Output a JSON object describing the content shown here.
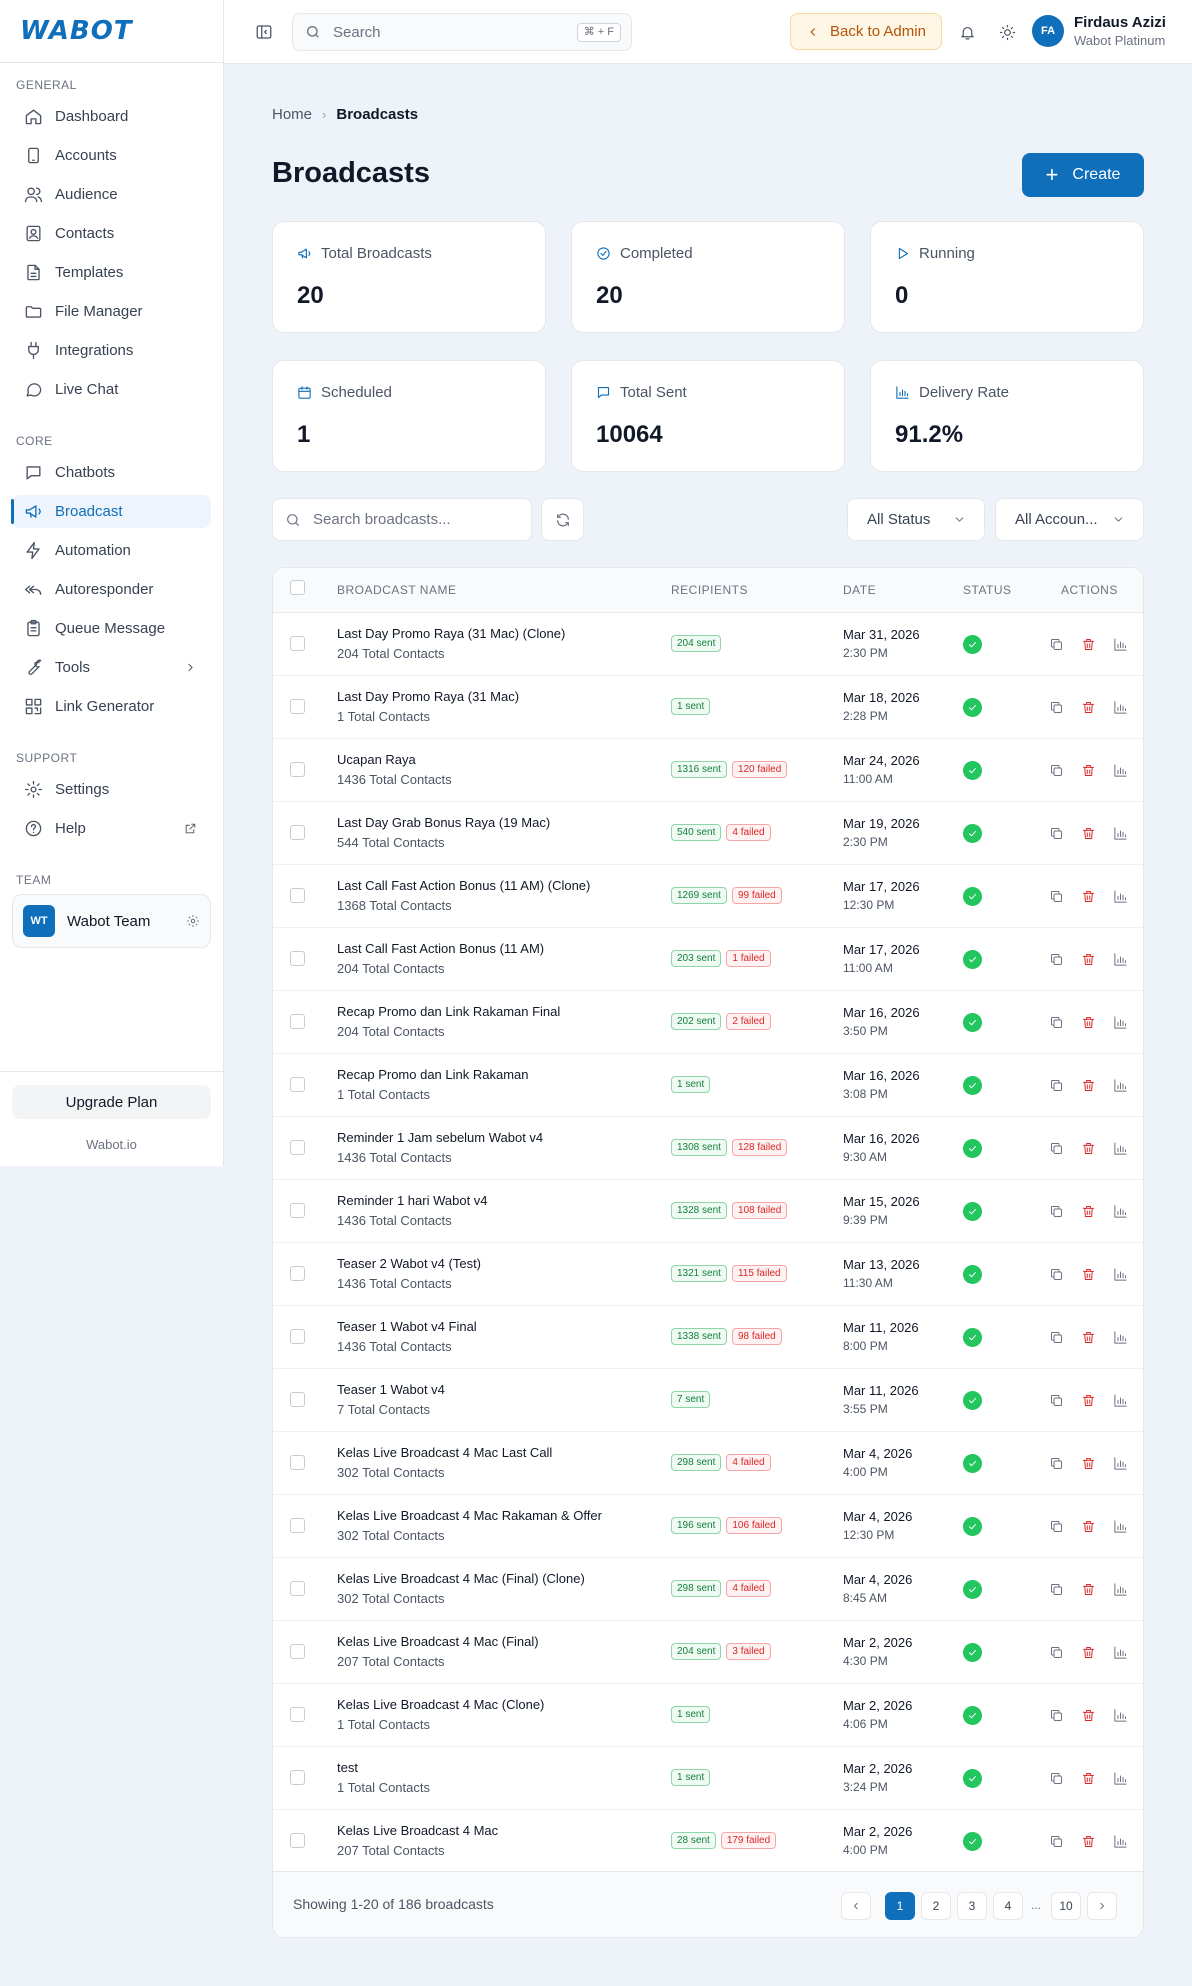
{
  "brand": {
    "logo_text": "WABOT"
  },
  "sidebar": {
    "sections": [
      "GENERAL",
      "CORE",
      "SUPPORT",
      "TEAM"
    ],
    "general": [
      {
        "label": "Dashboard",
        "icon": "home-icon"
      },
      {
        "label": "Accounts",
        "icon": "phone-icon"
      },
      {
        "label": "Audience",
        "icon": "users-icon"
      },
      {
        "label": "Contacts",
        "icon": "contact-card-icon"
      },
      {
        "label": "Templates",
        "icon": "file-text-icon"
      },
      {
        "label": "File Manager",
        "icon": "folder-icon"
      },
      {
        "label": "Integrations",
        "icon": "plug-icon"
      },
      {
        "label": "Live Chat",
        "icon": "message-circle-icon"
      }
    ],
    "core": [
      {
        "label": "Chatbots",
        "icon": "chat-square-icon"
      },
      {
        "label": "Broadcast",
        "icon": "megaphone-icon",
        "active": true
      },
      {
        "label": "Automation",
        "icon": "zap-icon"
      },
      {
        "label": "Autoresponder",
        "icon": "reply-all-icon"
      },
      {
        "label": "Queue Message",
        "icon": "clipboard-icon"
      },
      {
        "label": "Tools",
        "icon": "wrench-icon"
      },
      {
        "label": "Link Generator",
        "icon": "qr-code-icon"
      }
    ],
    "support": [
      {
        "label": "Settings",
        "icon": "gear-icon"
      },
      {
        "label": "Help",
        "icon": "help-circle-icon"
      }
    ],
    "team": {
      "initials": "WT",
      "name": "Wabot Team"
    },
    "upgrade_label": "Upgrade Plan",
    "footer_text": "Wabot.io"
  },
  "topbar": {
    "search_placeholder": "Search",
    "search_shortcut": "⌘ + F",
    "back_admin_label": "Back to Admin",
    "user": {
      "initials": "FA",
      "name": "Firdaus Azizi",
      "plan": "Wabot Platinum"
    }
  },
  "breadcrumb": {
    "home": "Home",
    "current": "Broadcasts"
  },
  "page_title": "Broadcasts",
  "create_label": "Create",
  "stats": [
    {
      "label": "Total Broadcasts",
      "value": "20",
      "icon": "megaphone-icon"
    },
    {
      "label": "Completed",
      "value": "20",
      "icon": "check-circle-icon"
    },
    {
      "label": "Running",
      "value": "0",
      "icon": "play-icon"
    },
    {
      "label": "Scheduled",
      "value": "1",
      "icon": "calendar-icon"
    },
    {
      "label": "Total Sent",
      "value": "10064",
      "icon": "message-square-icon"
    },
    {
      "label": "Delivery Rate",
      "value": "91.2%",
      "icon": "bar-chart-icon"
    }
  ],
  "filters": {
    "search_placeholder": "Search broadcasts...",
    "status_value": "All Status",
    "account_value": "All Accoun..."
  },
  "table": {
    "headers": [
      "BROADCAST NAME",
      "RECIPIENTS",
      "DATE",
      "STATUS",
      "ACTIONS"
    ],
    "rows": [
      {
        "name": "Last Day Promo Raya (31 Mac) (Clone)",
        "total": "204 Total Contacts",
        "sent": "204 sent",
        "failed": "",
        "date": "Mar 31, 2026",
        "time": "2:30 PM"
      },
      {
        "name": "Last Day Promo Raya (31 Mac)",
        "total": "1 Total Contacts",
        "sent": "1 sent",
        "failed": "",
        "date": "Mar 18, 2026",
        "time": "2:28 PM"
      },
      {
        "name": "Ucapan Raya",
        "total": "1436 Total Contacts",
        "sent": "1316 sent",
        "failed": "120 failed",
        "date": "Mar 24, 2026",
        "time": "11:00 AM"
      },
      {
        "name": "Last Day Grab Bonus Raya (19 Mac)",
        "total": "544 Total Contacts",
        "sent": "540 sent",
        "failed": "4 failed",
        "date": "Mar 19, 2026",
        "time": "2:30 PM"
      },
      {
        "name": "Last Call Fast Action Bonus (11 AM) (Clone)",
        "total": "1368 Total Contacts",
        "sent": "1269 sent",
        "failed": "99 failed",
        "date": "Mar 17, 2026",
        "time": "12:30 PM"
      },
      {
        "name": "Last Call Fast Action Bonus (11 AM)",
        "total": "204 Total Contacts",
        "sent": "203 sent",
        "failed": "1 failed",
        "date": "Mar 17, 2026",
        "time": "11:00 AM"
      },
      {
        "name": "Recap Promo dan Link Rakaman Final",
        "total": "204 Total Contacts",
        "sent": "202 sent",
        "failed": "2 failed",
        "date": "Mar 16, 2026",
        "time": "3:50 PM"
      },
      {
        "name": "Recap Promo dan Link Rakaman",
        "total": "1 Total Contacts",
        "sent": "1 sent",
        "failed": "",
        "date": "Mar 16, 2026",
        "time": "3:08 PM"
      },
      {
        "name": "Reminder 1 Jam sebelum Wabot v4",
        "total": "1436 Total Contacts",
        "sent": "1308 sent",
        "failed": "128 failed",
        "date": "Mar 16, 2026",
        "time": "9:30 AM"
      },
      {
        "name": "Reminder 1 hari Wabot v4",
        "total": "1436 Total Contacts",
        "sent": "1328 sent",
        "failed": "108 failed",
        "date": "Mar 15, 2026",
        "time": "9:39 PM"
      },
      {
        "name": "Teaser 2 Wabot v4 (Test)",
        "total": "1436 Total Contacts",
        "sent": "1321 sent",
        "failed": "115 failed",
        "date": "Mar 13, 2026",
        "time": "11:30 AM"
      },
      {
        "name": "Teaser 1 Wabot v4 Final",
        "total": "1436 Total Contacts",
        "sent": "1338 sent",
        "failed": "98 failed",
        "date": "Mar 11, 2026",
        "time": "8:00 PM"
      },
      {
        "name": "Teaser 1 Wabot v4",
        "total": "7 Total Contacts",
        "sent": "7 sent",
        "failed": "",
        "date": "Mar 11, 2026",
        "time": "3:55 PM"
      },
      {
        "name": "Kelas Live Broadcast 4 Mac Last Call",
        "total": "302 Total Contacts",
        "sent": "298 sent",
        "failed": "4 failed",
        "date": "Mar 4, 2026",
        "time": "4:00 PM"
      },
      {
        "name": "Kelas Live Broadcast 4 Mac Rakaman & Offer",
        "total": "302 Total Contacts",
        "sent": "196 sent",
        "failed": "106 failed",
        "date": "Mar 4, 2026",
        "time": "12:30 PM"
      },
      {
        "name": "Kelas Live Broadcast 4 Mac (Final) (Clone)",
        "total": "302 Total Contacts",
        "sent": "298 sent",
        "failed": "4 failed",
        "date": "Mar 4, 2026",
        "time": "8:45 AM"
      },
      {
        "name": "Kelas Live Broadcast 4 Mac (Final)",
        "total": "207 Total Contacts",
        "sent": "204 sent",
        "failed": "3 failed",
        "date": "Mar 2, 2026",
        "time": "4:30 PM"
      },
      {
        "name": "Kelas Live Broadcast 4 Mac (Clone)",
        "total": "1 Total Contacts",
        "sent": "1 sent",
        "failed": "",
        "date": "Mar 2, 2026",
        "time": "4:06 PM"
      },
      {
        "name": "test",
        "total": "1 Total Contacts",
        "sent": "1 sent",
        "failed": "",
        "date": "Mar 2, 2026",
        "time": "3:24 PM"
      },
      {
        "name": "Kelas Live Broadcast 4 Mac",
        "total": "207 Total Contacts",
        "sent": "28 sent",
        "failed": "179 failed",
        "date": "Mar 2, 2026",
        "time": "4:00 PM"
      }
    ]
  },
  "pagination": {
    "showing": "Showing 1-20 of 186 broadcasts",
    "pages": [
      "1",
      "2",
      "3",
      "4",
      "...",
      "10"
    ],
    "current": "1"
  },
  "colors": {
    "accent": "#0f6fba",
    "success": "#22c55e",
    "danger": "#dc2626",
    "warning_bg": "#fef7e6"
  }
}
